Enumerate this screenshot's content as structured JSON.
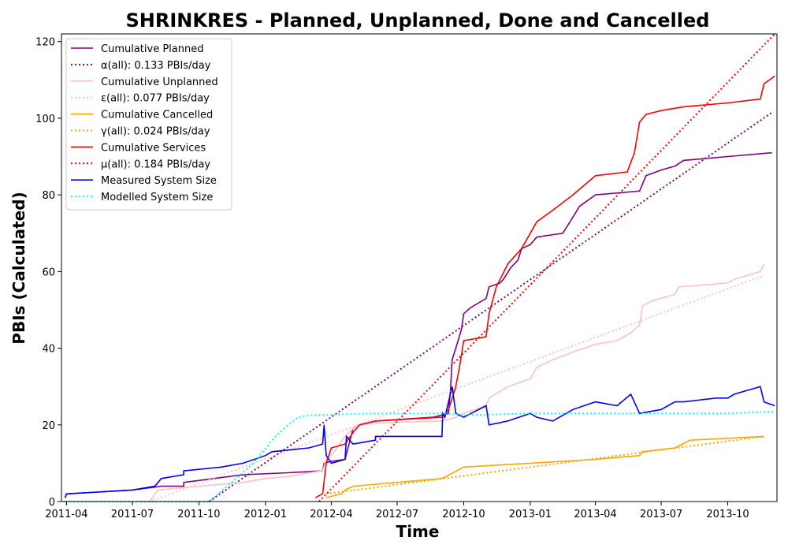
{
  "chart_data": {
    "type": "line",
    "title": "SHRINKRES - Planned, Unplanned, Done  and Cancelled",
    "xlabel": "Time",
    "ylabel": "PBIs (Calculated)",
    "xlim": [
      "2011-03-25",
      "2013-12-08"
    ],
    "ylim": [
      0,
      122
    ],
    "x_ticks": [
      "2011-04",
      "2011-07",
      "2011-10",
      "2012-01",
      "2012-04",
      "2012-07",
      "2012-10",
      "2013-01",
      "2013-04",
      "2013-07",
      "2013-10"
    ],
    "y_ticks": [
      0,
      20,
      40,
      60,
      80,
      100,
      120
    ],
    "grid": false,
    "legend_position": "top-left",
    "series": [
      {
        "name": "Cumulative Planned",
        "color": "#800080",
        "style": "solid",
        "points": [
          [
            "2011-03-30",
            1
          ],
          [
            "2011-04-01",
            2
          ],
          [
            "2011-07-01",
            3
          ],
          [
            "2011-08-10",
            4
          ],
          [
            "2011-09-10",
            4
          ],
          [
            "2011-09-10",
            5
          ],
          [
            "2011-10-01",
            5.5
          ],
          [
            "2011-12-01",
            7
          ],
          [
            "2012-02-01",
            7.5
          ],
          [
            "2012-03-20",
            8
          ],
          [
            "2012-03-22",
            10
          ],
          [
            "2012-04-01",
            10.5
          ],
          [
            "2012-04-20",
            11
          ],
          [
            "2012-05-01",
            19
          ],
          [
            "2012-05-10",
            20
          ],
          [
            "2012-06-01",
            21
          ],
          [
            "2012-08-20",
            22
          ],
          [
            "2012-09-10",
            23
          ],
          [
            "2012-09-13",
            30
          ],
          [
            "2012-09-15",
            37
          ],
          [
            "2012-09-20",
            40
          ],
          [
            "2012-09-28",
            45
          ],
          [
            "2012-10-01",
            49
          ],
          [
            "2012-10-10",
            50.5
          ],
          [
            "2012-11-01",
            53
          ],
          [
            "2012-11-05",
            56
          ],
          [
            "2012-11-20",
            57
          ],
          [
            "2012-11-25",
            58
          ],
          [
            "2012-12-05",
            61
          ],
          [
            "2012-12-15",
            63
          ],
          [
            "2012-12-20",
            66
          ],
          [
            "2013-01-01",
            67
          ],
          [
            "2013-01-10",
            69
          ],
          [
            "2013-02-15",
            70
          ],
          [
            "2013-02-25",
            73
          ],
          [
            "2013-03-10",
            77
          ],
          [
            "2013-04-01",
            80
          ],
          [
            "2013-06-01",
            81
          ],
          [
            "2013-06-10",
            85
          ],
          [
            "2013-07-01",
            86.5
          ],
          [
            "2013-07-20",
            87.5
          ],
          [
            "2013-08-01",
            89
          ],
          [
            "2013-10-01",
            90
          ],
          [
            "2013-12-01",
            91
          ]
        ]
      },
      {
        "name": "α(all): 0.133 PBIs/day",
        "color": "#800080",
        "style": "dotted",
        "points": [
          [
            "2011-10-15",
            0
          ],
          [
            "2013-12-01",
            101.5
          ]
        ]
      },
      {
        "name": "Cumulative Unplanned",
        "color": "#ffc0cb",
        "style": "solid",
        "points": [
          [
            "2011-07-25",
            0
          ],
          [
            "2011-08-05",
            3
          ],
          [
            "2011-10-01",
            4
          ],
          [
            "2011-12-01",
            5
          ],
          [
            "2012-01-01",
            6
          ],
          [
            "2012-02-01",
            6.5
          ],
          [
            "2012-03-01",
            7.5
          ],
          [
            "2012-03-20",
            8
          ],
          [
            "2012-03-25",
            11
          ],
          [
            "2012-04-05",
            13
          ],
          [
            "2012-04-20",
            17
          ],
          [
            "2012-05-01",
            19
          ],
          [
            "2012-05-10",
            20
          ],
          [
            "2012-06-01",
            20.5
          ],
          [
            "2012-09-01",
            21
          ],
          [
            "2012-09-20",
            22
          ],
          [
            "2012-10-01",
            23
          ],
          [
            "2012-11-01",
            25
          ],
          [
            "2012-11-05",
            27
          ],
          [
            "2012-12-01",
            30
          ],
          [
            "2013-01-01",
            32
          ],
          [
            "2013-01-10",
            35
          ],
          [
            "2013-02-01",
            37
          ],
          [
            "2013-03-01",
            39
          ],
          [
            "2013-04-01",
            41
          ],
          [
            "2013-05-01",
            42
          ],
          [
            "2013-05-20",
            44
          ],
          [
            "2013-06-01",
            46
          ],
          [
            "2013-06-05",
            51
          ],
          [
            "2013-06-20",
            52.5
          ],
          [
            "2013-07-20",
            54
          ],
          [
            "2013-07-25",
            56
          ],
          [
            "2013-10-01",
            57
          ],
          [
            "2013-10-10",
            58
          ],
          [
            "2013-11-15",
            60
          ],
          [
            "2013-11-20",
            62
          ]
        ]
      },
      {
        "name": "ε(all): 0.077 PBIs/day",
        "color": "#ffc0cb",
        "style": "dotted",
        "points": [
          [
            "2011-07-25",
            0
          ],
          [
            "2013-11-20",
            59
          ]
        ]
      },
      {
        "name": "Cumulative Cancelled",
        "color": "#ffa500",
        "style": "solid",
        "points": [
          [
            "2012-03-25",
            1
          ],
          [
            "2012-04-15",
            2
          ],
          [
            "2012-04-20",
            3
          ],
          [
            "2012-05-01",
            4
          ],
          [
            "2012-07-01",
            5
          ],
          [
            "2012-09-01",
            6
          ],
          [
            "2012-10-01",
            9
          ],
          [
            "2013-01-01",
            10
          ],
          [
            "2013-04-01",
            11
          ],
          [
            "2013-06-01",
            12
          ],
          [
            "2013-06-05",
            13
          ],
          [
            "2013-07-20",
            14
          ],
          [
            "2013-08-10",
            16
          ],
          [
            "2013-11-20",
            17
          ]
        ]
      },
      {
        "name": "γ(all): 0.024 PBIs/day",
        "color": "#ffa500",
        "style": "dotted",
        "points": [
          [
            "2012-03-25",
            2
          ],
          [
            "2013-11-20",
            17
          ]
        ]
      },
      {
        "name": "Cumulative Services",
        "color": "#ff0000",
        "style": "solid",
        "points": [
          [
            "2012-03-10",
            1
          ],
          [
            "2012-03-20",
            2
          ],
          [
            "2012-03-25",
            10
          ],
          [
            "2012-04-01",
            14
          ],
          [
            "2012-04-20",
            15
          ],
          [
            "2012-05-01",
            18
          ],
          [
            "2012-05-10",
            20
          ],
          [
            "2012-06-01",
            21
          ],
          [
            "2012-09-01",
            22
          ],
          [
            "2012-09-10",
            24
          ],
          [
            "2012-09-20",
            30
          ],
          [
            "2012-09-25",
            35
          ],
          [
            "2012-10-01",
            42
          ],
          [
            "2012-11-01",
            43
          ],
          [
            "2012-11-05",
            49
          ],
          [
            "2012-11-15",
            56
          ],
          [
            "2012-12-01",
            62
          ],
          [
            "2012-12-20",
            66
          ],
          [
            "2013-01-01",
            70
          ],
          [
            "2013-01-10",
            73
          ],
          [
            "2013-02-01",
            76
          ],
          [
            "2013-03-01",
            80
          ],
          [
            "2013-04-01",
            85
          ],
          [
            "2013-05-15",
            86
          ],
          [
            "2013-05-25",
            91
          ],
          [
            "2013-06-01",
            99
          ],
          [
            "2013-06-10",
            101
          ],
          [
            "2013-07-01",
            102
          ],
          [
            "2013-08-01",
            103
          ],
          [
            "2013-10-01",
            104
          ],
          [
            "2013-11-15",
            105
          ],
          [
            "2013-11-20",
            109
          ],
          [
            "2013-12-05",
            111
          ]
        ]
      },
      {
        "name": "μ(all): 0.184 PBIs/day",
        "color": "#ff0000",
        "style": "dotted",
        "points": [
          [
            "2012-03-15",
            0
          ],
          [
            "2013-12-05",
            122
          ]
        ]
      },
      {
        "name": "Measured System Size",
        "color": "#0000ff",
        "style": "solid",
        "points": [
          [
            "2011-03-30",
            1
          ],
          [
            "2011-04-01",
            2
          ],
          [
            "2011-07-01",
            3
          ],
          [
            "2011-08-01",
            4
          ],
          [
            "2011-08-10",
            6
          ],
          [
            "2011-09-10",
            7
          ],
          [
            "2011-09-10",
            8
          ],
          [
            "2011-11-01",
            9
          ],
          [
            "2011-12-01",
            10
          ],
          [
            "2012-01-01",
            12
          ],
          [
            "2012-01-10",
            13
          ],
          [
            "2012-03-01",
            14
          ],
          [
            "2012-03-20",
            15
          ],
          [
            "2012-03-22",
            20
          ],
          [
            "2012-03-25",
            12
          ],
          [
            "2012-04-01",
            10
          ],
          [
            "2012-04-20",
            11
          ],
          [
            "2012-04-22",
            17
          ],
          [
            "2012-05-01",
            15
          ],
          [
            "2012-06-01",
            16
          ],
          [
            "2012-06-01",
            17
          ],
          [
            "2012-09-01",
            17
          ],
          [
            "2012-09-02",
            23
          ],
          [
            "2012-09-05",
            22
          ],
          [
            "2012-09-15",
            30
          ],
          [
            "2012-09-20",
            23
          ],
          [
            "2012-10-01",
            22
          ],
          [
            "2012-11-01",
            25
          ],
          [
            "2012-11-05",
            20
          ],
          [
            "2012-12-01",
            21
          ],
          [
            "2013-01-01",
            23
          ],
          [
            "2013-01-10",
            22
          ],
          [
            "2013-02-01",
            21
          ],
          [
            "2013-03-01",
            24
          ],
          [
            "2013-04-01",
            26
          ],
          [
            "2013-05-01",
            25
          ],
          [
            "2013-05-20",
            28
          ],
          [
            "2013-06-01",
            23
          ],
          [
            "2013-07-01",
            24
          ],
          [
            "2013-07-20",
            26
          ],
          [
            "2013-08-01",
            26
          ],
          [
            "2013-09-15",
            27
          ],
          [
            "2013-10-01",
            27
          ],
          [
            "2013-10-10",
            28
          ],
          [
            "2013-11-15",
            30
          ],
          [
            "2013-11-20",
            26
          ],
          [
            "2013-12-05",
            25
          ]
        ]
      },
      {
        "name": "Modelled System Size",
        "color": "#00ffff",
        "style": "dotted",
        "points": [
          [
            "2011-03-30",
            0
          ],
          [
            "2011-10-15",
            0
          ],
          [
            "2011-11-15",
            5
          ],
          [
            "2011-12-15",
            10
          ],
          [
            "2012-01-15",
            17
          ],
          [
            "2012-02-01",
            20
          ],
          [
            "2012-02-15",
            22
          ],
          [
            "2012-03-01",
            22.5
          ],
          [
            "2012-06-01",
            23
          ],
          [
            "2012-09-01",
            23
          ],
          [
            "2012-10-01",
            22.5
          ],
          [
            "2013-01-01",
            23
          ],
          [
            "2013-04-01",
            23
          ],
          [
            "2013-07-01",
            23
          ],
          [
            "2013-10-01",
            23
          ],
          [
            "2013-12-05",
            23.5
          ]
        ]
      }
    ]
  }
}
